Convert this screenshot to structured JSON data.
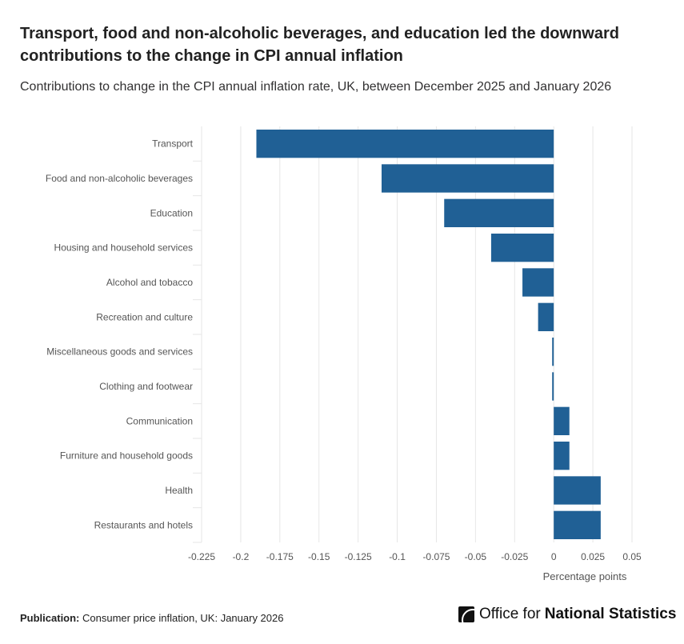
{
  "title": "Transport, food and non-alcoholic beverages, and education led the downward contributions to the change in CPI annual inflation",
  "subtitle": "Contributions to change in the CPI annual inflation rate, UK, between December 2025 and January 2026",
  "footer": {
    "publication_label": "Publication:",
    "publication": "Consumer price inflation, UK: January 2026",
    "logo_light": "Office for",
    "logo_bold": "National Statistics"
  },
  "colors": {
    "bar": "#206095"
  },
  "chart_data": {
    "type": "bar",
    "orientation": "horizontal",
    "categories": [
      "Transport",
      "Food and non-alcoholic beverages",
      "Education",
      "Housing and household services",
      "Alcohol and tobacco",
      "Recreation and culture",
      "Miscellaneous goods and services",
      "Clothing and footwear",
      "Communication",
      "Furniture and household goods",
      "Health",
      "Restaurants and hotels"
    ],
    "values": [
      -0.19,
      -0.11,
      -0.07,
      -0.04,
      -0.02,
      -0.01,
      -0.001,
      -0.001,
      0.01,
      0.01,
      0.03,
      0.03
    ],
    "xlabel": "Percentage points",
    "xlim": [
      -0.225,
      0.05
    ],
    "xticks": [
      "-0.225",
      "-0.2",
      "-0.175",
      "-0.15",
      "-0.125",
      "-0.1",
      "-0.075",
      "-0.05",
      "-0.025",
      "0",
      "0.025",
      "0.05"
    ],
    "grid": true
  }
}
